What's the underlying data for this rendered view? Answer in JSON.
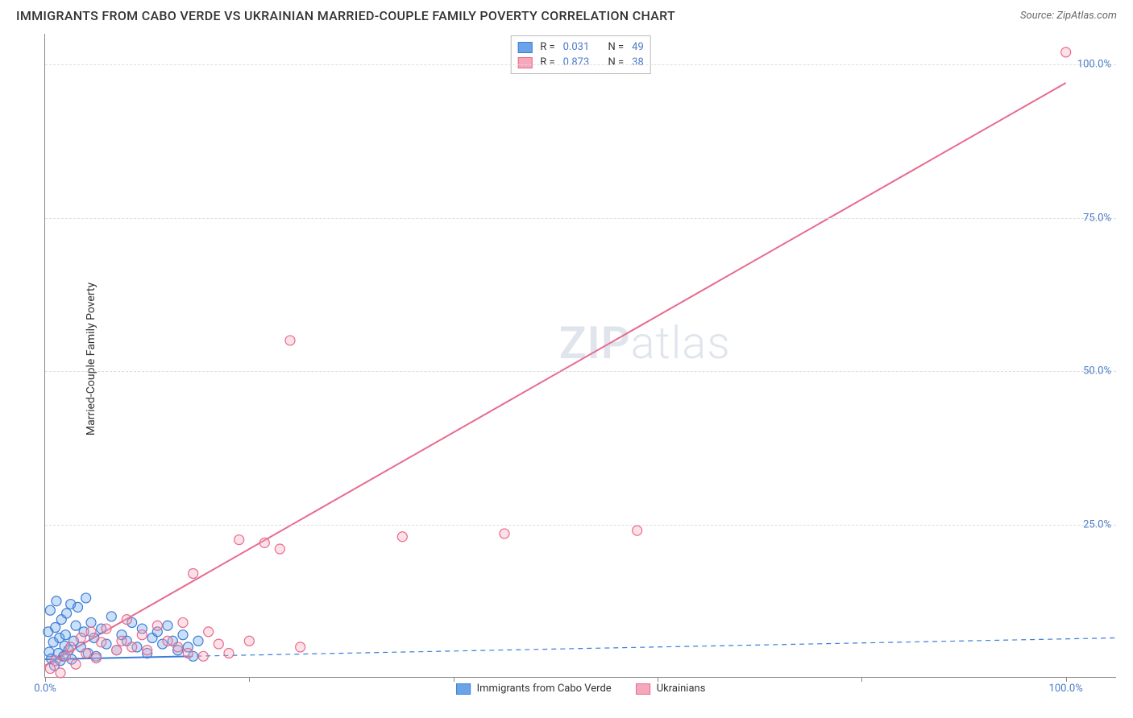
{
  "header": {
    "title": "IMMIGRANTS FROM CABO VERDE VS UKRAINIAN MARRIED-COUPLE FAMILY POVERTY CORRELATION CHART",
    "source": "Source: ZipAtlas.com"
  },
  "y_axis": {
    "label": "Married-Couple Family Poverty"
  },
  "watermark": {
    "part1": "ZIP",
    "part2": "atlas"
  },
  "chart": {
    "type": "scatter",
    "xlim": [
      0,
      105
    ],
    "ylim": [
      0,
      105
    ],
    "x_ticks": [
      0,
      20,
      40,
      60,
      80,
      100
    ],
    "y_ticks": [
      25,
      50,
      75,
      100
    ],
    "x_tick_labels": {
      "0": "0.0%",
      "100": "100.0%"
    },
    "y_tick_labels": {
      "25": "25.0%",
      "50": "50.0%",
      "75": "75.0%",
      "100": "100.0%"
    },
    "background_color": "#ffffff",
    "grid_color": "#dddddd",
    "axis_color": "#888888",
    "tick_label_color": "#4a7bc8",
    "point_radius": 6,
    "series": [
      {
        "key": "cabo_verde",
        "label": "Immigrants from Cabo Verde",
        "fill_color": "#6aa3e8",
        "stroke_color": "#3b7dd8",
        "R": "0.031",
        "N": "49",
        "regression": {
          "x1": 0,
          "y1": 3.0,
          "x2": 14,
          "y2": 3.5,
          "dashed_x2": 105,
          "dashed_y2": 6.5
        },
        "points": [
          [
            0.3,
            7.5
          ],
          [
            0.4,
            4.2
          ],
          [
            0.5,
            11.0
          ],
          [
            0.6,
            3.1
          ],
          [
            0.8,
            5.8
          ],
          [
            0.9,
            2.0
          ],
          [
            1.0,
            8.2
          ],
          [
            1.1,
            12.5
          ],
          [
            1.3,
            4.0
          ],
          [
            1.4,
            6.5
          ],
          [
            1.5,
            2.8
          ],
          [
            1.6,
            9.5
          ],
          [
            1.8,
            3.5
          ],
          [
            1.9,
            5.2
          ],
          [
            2.0,
            7.0
          ],
          [
            2.1,
            10.5
          ],
          [
            2.3,
            4.5
          ],
          [
            2.5,
            12.0
          ],
          [
            2.6,
            3.0
          ],
          [
            2.8,
            6.0
          ],
          [
            3.0,
            8.5
          ],
          [
            3.2,
            11.5
          ],
          [
            3.5,
            5.0
          ],
          [
            3.8,
            7.5
          ],
          [
            4.0,
            13.0
          ],
          [
            4.2,
            4.0
          ],
          [
            4.5,
            9.0
          ],
          [
            4.8,
            6.5
          ],
          [
            5.0,
            3.5
          ],
          [
            5.5,
            8.0
          ],
          [
            6.0,
            5.5
          ],
          [
            6.5,
            10.0
          ],
          [
            7.0,
            4.5
          ],
          [
            7.5,
            7.0
          ],
          [
            8.0,
            6.0
          ],
          [
            8.5,
            9.0
          ],
          [
            9.0,
            5.0
          ],
          [
            9.5,
            8.0
          ],
          [
            10.0,
            4.0
          ],
          [
            10.5,
            6.5
          ],
          [
            11.0,
            7.5
          ],
          [
            11.5,
            5.5
          ],
          [
            12.0,
            8.5
          ],
          [
            12.5,
            6.0
          ],
          [
            13.0,
            4.5
          ],
          [
            13.5,
            7.0
          ],
          [
            14.0,
            5.0
          ],
          [
            14.5,
            3.5
          ],
          [
            15.0,
            6.0
          ]
        ]
      },
      {
        "key": "ukrainians",
        "label": "Ukrainians",
        "fill_color": "#f5a8bb",
        "stroke_color": "#e86a8e",
        "R": "0.873",
        "N": "38",
        "regression": {
          "x1": 0,
          "y1": 2.0,
          "x2": 100,
          "y2": 97.0
        },
        "points": [
          [
            0.5,
            1.5
          ],
          [
            1.0,
            2.8
          ],
          [
            1.5,
            0.8
          ],
          [
            2.0,
            3.5
          ],
          [
            2.5,
            5.0
          ],
          [
            3.0,
            2.2
          ],
          [
            3.5,
            6.5
          ],
          [
            4.0,
            4.0
          ],
          [
            4.5,
            7.5
          ],
          [
            5.0,
            3.2
          ],
          [
            5.5,
            5.8
          ],
          [
            6.0,
            8.0
          ],
          [
            7.0,
            4.5
          ],
          [
            7.5,
            6.0
          ],
          [
            8.0,
            9.5
          ],
          [
            8.5,
            5.0
          ],
          [
            9.5,
            7.0
          ],
          [
            10.0,
            4.5
          ],
          [
            11.0,
            8.5
          ],
          [
            12.0,
            6.0
          ],
          [
            13.0,
            5.0
          ],
          [
            13.5,
            9.0
          ],
          [
            14.0,
            4.0
          ],
          [
            14.5,
            17.0
          ],
          [
            15.5,
            3.5
          ],
          [
            16.0,
            7.5
          ],
          [
            17.0,
            5.5
          ],
          [
            18.0,
            4.0
          ],
          [
            19.0,
            22.5
          ],
          [
            20.0,
            6.0
          ],
          [
            21.5,
            22.0
          ],
          [
            23.0,
            21.0
          ],
          [
            24.0,
            55.0
          ],
          [
            25.0,
            5.0
          ],
          [
            35.0,
            23.0
          ],
          [
            45.0,
            23.5
          ],
          [
            58.0,
            24.0
          ],
          [
            100.0,
            102.0
          ]
        ]
      }
    ]
  },
  "legend_top": {
    "r_label": "R =",
    "n_label": "N ="
  }
}
